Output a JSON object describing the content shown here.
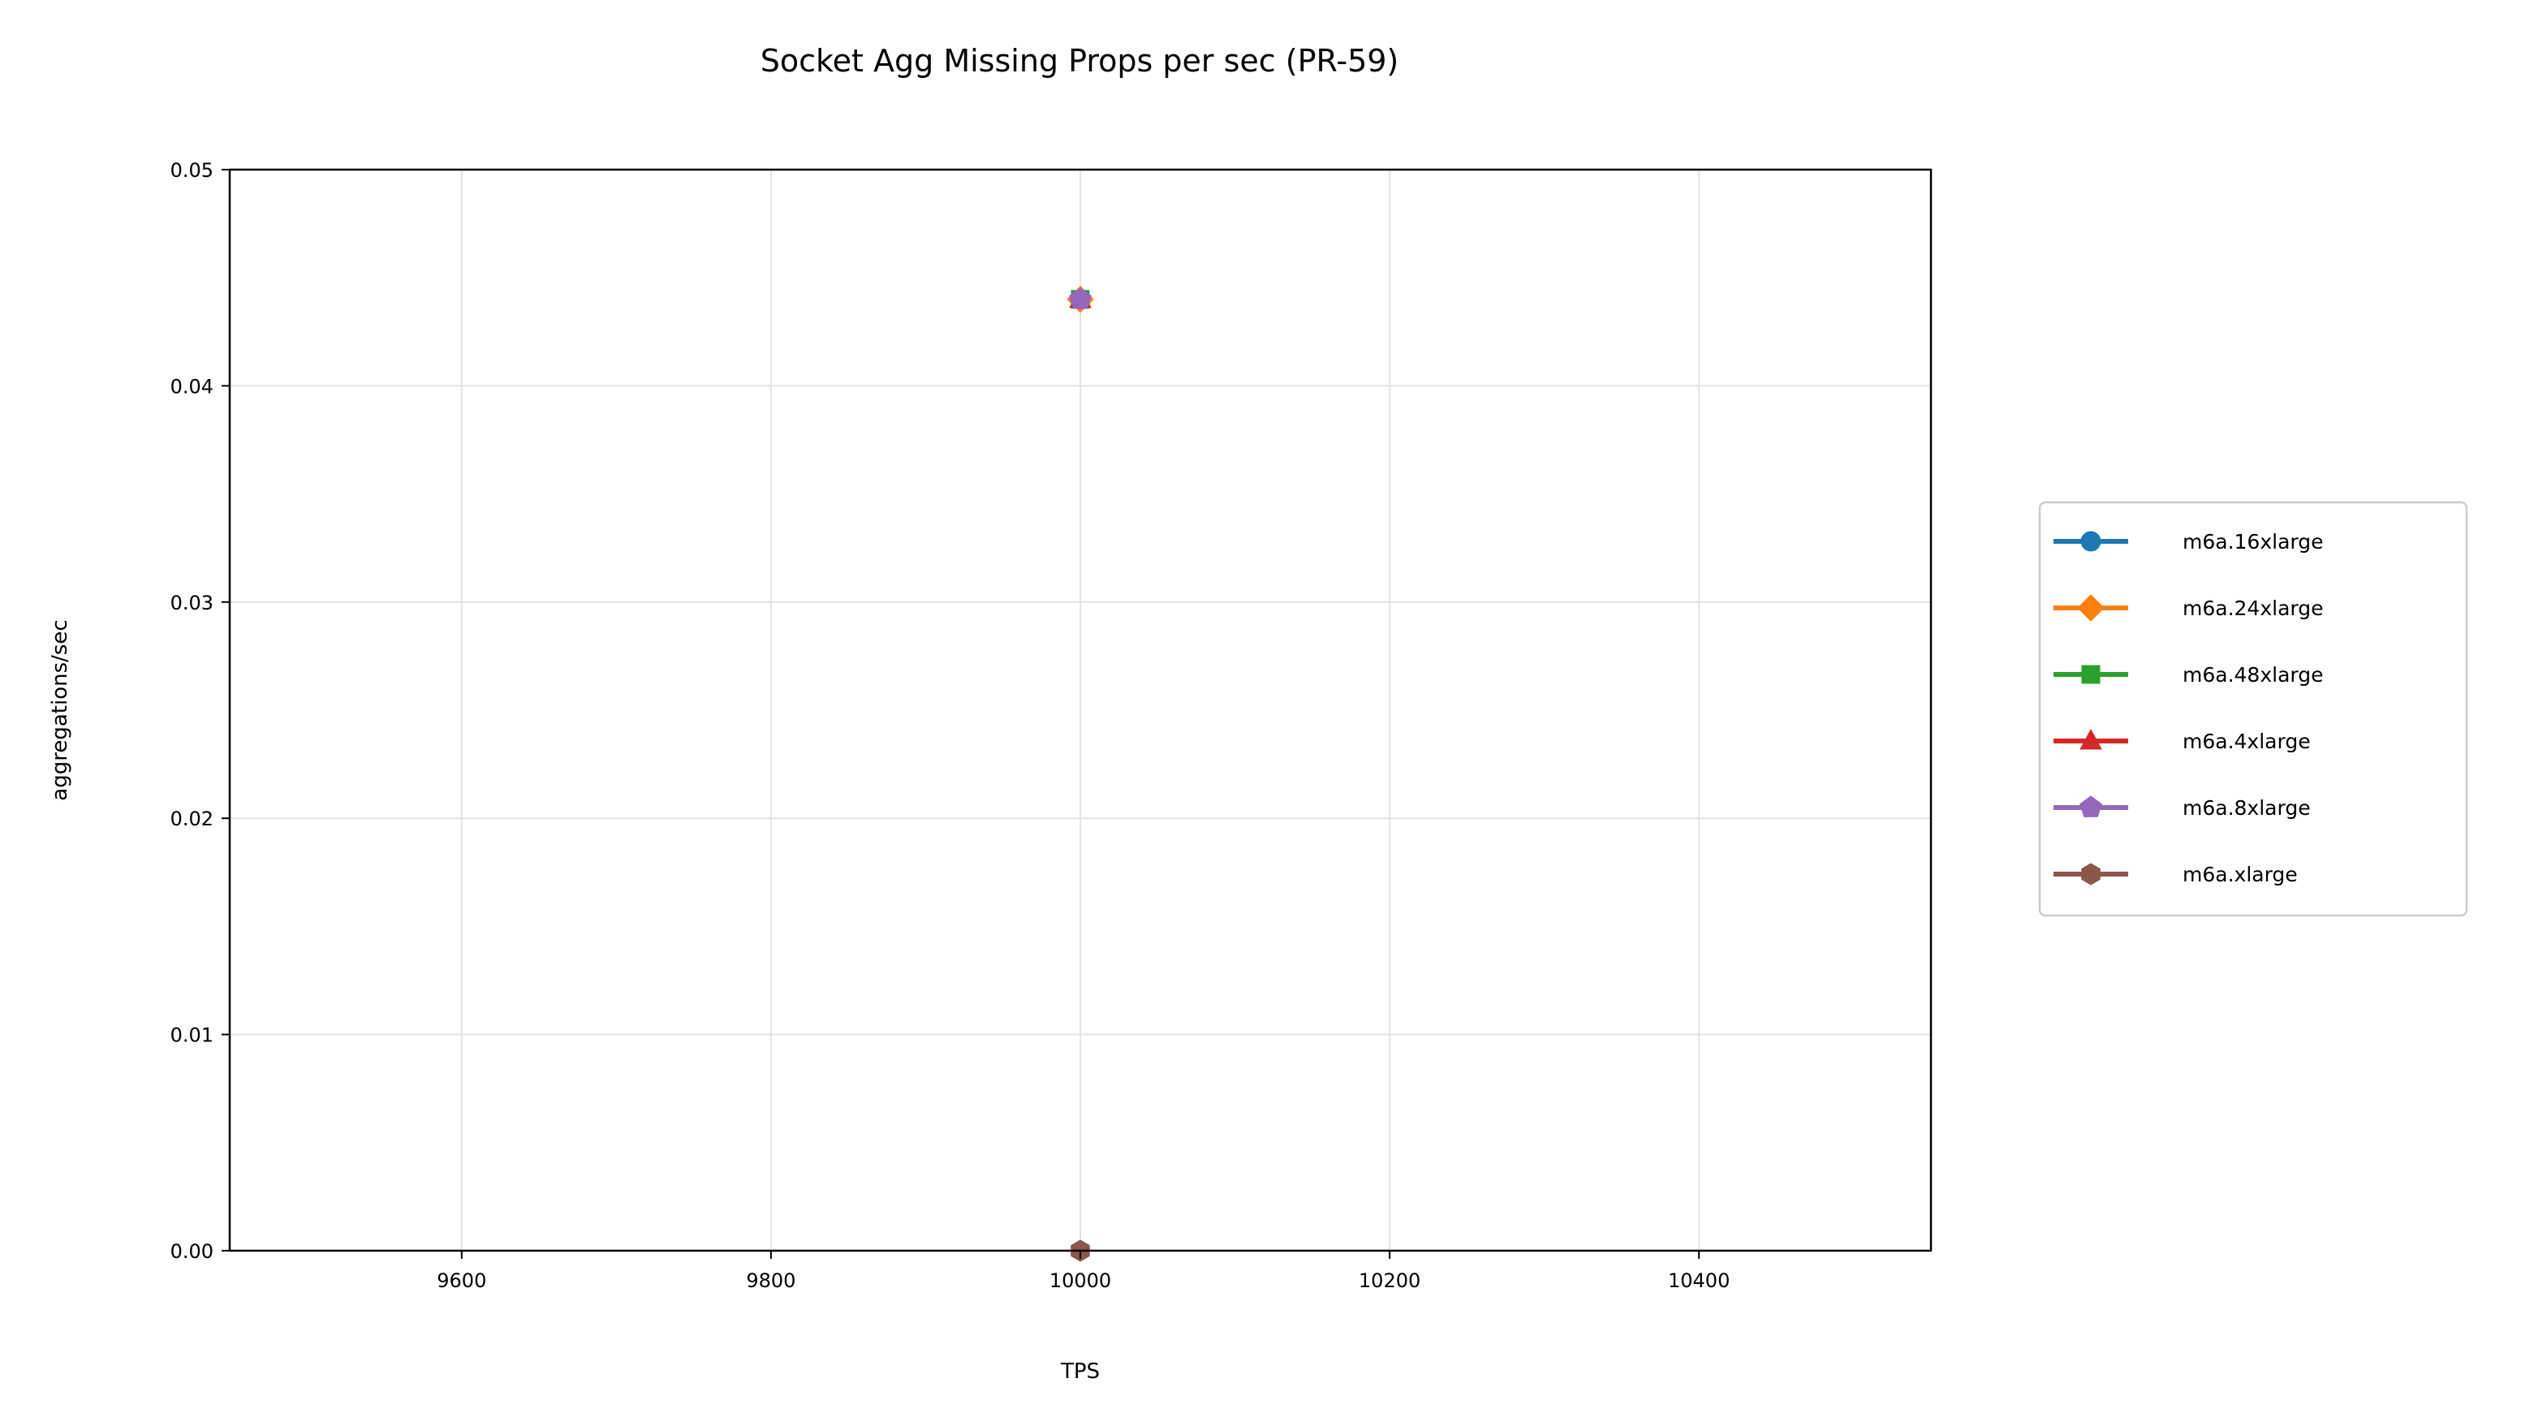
{
  "chart_data": {
    "type": "line",
    "title": "Socket Agg Missing Props per sec (PR-59)",
    "xlabel": "TPS",
    "ylabel": "aggregations/sec",
    "xlim": [
      9450,
      10550
    ],
    "ylim": [
      0,
      0.05
    ],
    "x_ticks": [
      "9600",
      "9800",
      "10000",
      "10200",
      "10400"
    ],
    "x_tick_values": [
      9600,
      9800,
      10000,
      10200,
      10400
    ],
    "y_ticks": [
      "0.00",
      "0.01",
      "0.02",
      "0.03",
      "0.04",
      "0.05"
    ],
    "y_tick_values": [
      0,
      0.01,
      0.02,
      0.03,
      0.04,
      0.05
    ],
    "grid": true,
    "legend_position": "right",
    "series": [
      {
        "name": "m6a.16xlarge",
        "color": "#1f77b4",
        "marker": "circle",
        "x": [
          10000
        ],
        "y": [
          0.044
        ]
      },
      {
        "name": "m6a.24xlarge",
        "color": "#ff7f0e",
        "marker": "diamond",
        "x": [
          10000
        ],
        "y": [
          0.044
        ]
      },
      {
        "name": "m6a.48xlarge",
        "color": "#2ca02c",
        "marker": "square",
        "x": [
          10000
        ],
        "y": [
          0.044
        ]
      },
      {
        "name": "m6a.4xlarge",
        "color": "#d62728",
        "marker": "triangle",
        "x": [
          10000
        ],
        "y": [
          0.044
        ]
      },
      {
        "name": "m6a.8xlarge",
        "color": "#9467bd",
        "marker": "pentagon",
        "x": [
          10000
        ],
        "y": [
          0.044
        ]
      },
      {
        "name": "m6a.xlarge",
        "color": "#8c564b",
        "marker": "hexagon",
        "x": [
          10000
        ],
        "y": [
          0.0
        ]
      }
    ]
  }
}
